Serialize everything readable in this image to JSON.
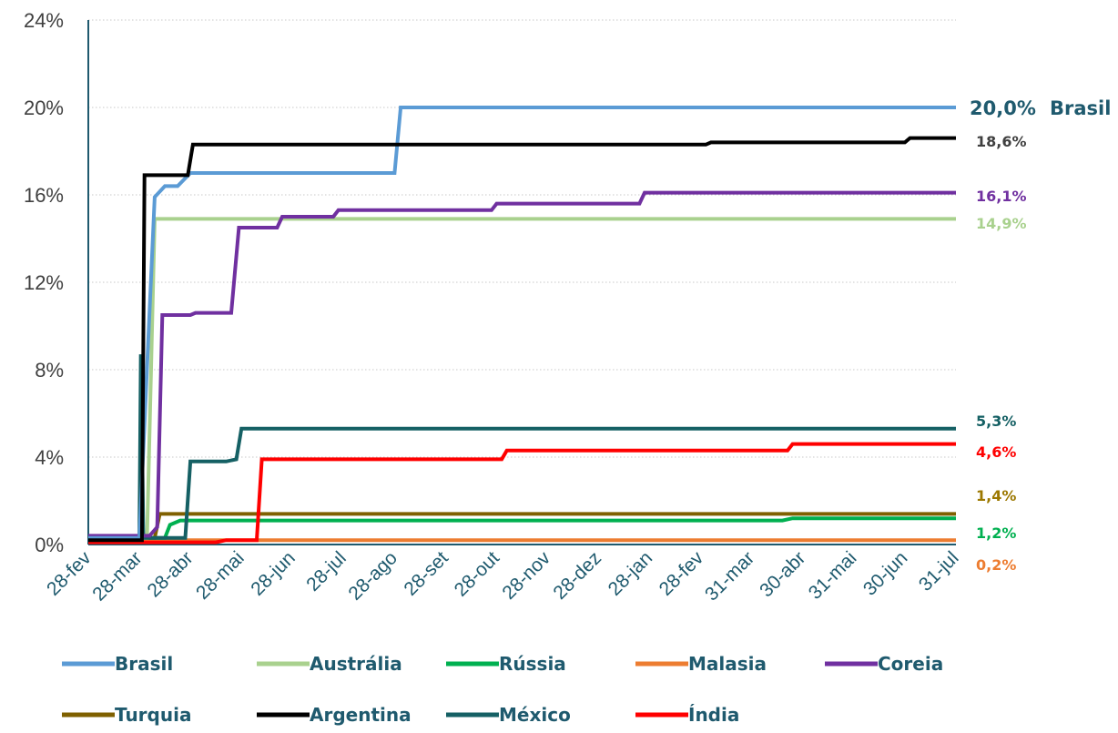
{
  "chart_data": {
    "type": "line",
    "title": "",
    "xlabel": "",
    "ylabel": "",
    "ylim": [
      0,
      24
    ],
    "yticks": [
      "0%",
      "4%",
      "8%",
      "12%",
      "16%",
      "20%",
      "24%"
    ],
    "xticks": [
      "28-fev",
      "28-mar",
      "28-abr",
      "28-mai",
      "28-jun",
      "28-jul",
      "28-ago",
      "28-set",
      "28-out",
      "28-nov",
      "28-dez",
      "28-jan",
      "28-fev",
      "31-mar",
      "30-abr",
      "31-mai",
      "30-jun",
      "31-jul"
    ],
    "grid": true,
    "legend": "bottom",
    "series": [
      {
        "name": "Brasil",
        "color": "#5b9bd5",
        "end_label": "20,0%",
        "steps": [
          [
            0,
            0.3
          ],
          [
            1,
            0.3
          ],
          [
            1.3,
            15.9
          ],
          [
            1.5,
            16.4
          ],
          [
            1.75,
            16.4
          ],
          [
            2.0,
            17.0
          ],
          [
            6.0,
            17.0
          ],
          [
            6.12,
            20.0
          ],
          [
            17,
            20.0
          ]
        ]
      },
      {
        "name": "Austrália",
        "color": "#a9d18e",
        "end_label": "14,9%",
        "steps": [
          [
            0,
            0.3
          ],
          [
            1.15,
            0.3
          ],
          [
            1.3,
            14.9
          ],
          [
            17,
            14.9
          ]
        ]
      },
      {
        "name": "Rússia",
        "color": "#00b050",
        "end_label": "1,2%",
        "steps": [
          [
            0,
            0.3
          ],
          [
            1.5,
            0.3
          ],
          [
            1.6,
            0.9
          ],
          [
            1.8,
            1.1
          ],
          [
            13.6,
            1.1
          ],
          [
            13.8,
            1.2
          ],
          [
            17,
            1.2
          ]
        ]
      },
      {
        "name": "Malasia",
        "color": "#ed7d31",
        "end_label": "0,2%",
        "steps": [
          [
            0,
            0.2
          ],
          [
            17,
            0.2
          ]
        ]
      },
      {
        "name": "Coreia",
        "color": "#7030a0",
        "end_label": "16,1%",
        "steps": [
          [
            0,
            0.4
          ],
          [
            1.2,
            0.4
          ],
          [
            1.35,
            0.8
          ],
          [
            1.45,
            10.5
          ],
          [
            2.0,
            10.5
          ],
          [
            2.1,
            10.6
          ],
          [
            2.8,
            10.6
          ],
          [
            2.95,
            14.5
          ],
          [
            3.7,
            14.5
          ],
          [
            3.8,
            15.0
          ],
          [
            4.8,
            15.0
          ],
          [
            4.9,
            15.3
          ],
          [
            7.9,
            15.3
          ],
          [
            8.0,
            15.6
          ],
          [
            10.8,
            15.6
          ],
          [
            10.9,
            16.1
          ],
          [
            17,
            16.1
          ]
        ]
      },
      {
        "name": "Turquia",
        "color": "#7f6000",
        "end_label": "1,4%",
        "steps": [
          [
            0,
            0.3
          ],
          [
            1.3,
            0.3
          ],
          [
            1.4,
            1.4
          ],
          [
            17,
            1.4
          ]
        ]
      },
      {
        "name": "Argentina",
        "color": "#000000",
        "end_label": "18,6%",
        "steps": [
          [
            0,
            0.2
          ],
          [
            1.05,
            0.2
          ],
          [
            1.1,
            16.9
          ],
          [
            1.95,
            16.9
          ],
          [
            2.05,
            18.3
          ],
          [
            12.1,
            18.3
          ],
          [
            12.2,
            18.4
          ],
          [
            16.0,
            18.4
          ],
          [
            16.1,
            18.6
          ],
          [
            17,
            18.6
          ]
        ]
      },
      {
        "name": "México",
        "color": "#156064",
        "end_label": "5,3%",
        "steps": [
          [
            0,
            0.3
          ],
          [
            1.0,
            0.3
          ],
          [
            1.03,
            8.7
          ],
          [
            1.08,
            0.3
          ],
          [
            1.9,
            0.3
          ],
          [
            2.0,
            3.8
          ],
          [
            2.7,
            3.8
          ],
          [
            2.9,
            3.9
          ],
          [
            3.0,
            5.3
          ],
          [
            17,
            5.3
          ]
        ]
      },
      {
        "name": "Índia",
        "color": "#ff0000",
        "end_label": "4,6%",
        "steps": [
          [
            0,
            0.1
          ],
          [
            2.5,
            0.1
          ],
          [
            2.7,
            0.2
          ],
          [
            3.3,
            0.2
          ],
          [
            3.4,
            3.9
          ],
          [
            8.1,
            3.9
          ],
          [
            8.2,
            4.3
          ],
          [
            13.7,
            4.3
          ],
          [
            13.8,
            4.6
          ],
          [
            17,
            4.6
          ]
        ]
      }
    ]
  },
  "highlight": {
    "value": "20,0%",
    "name": "Brasil",
    "color": "#1f5a6e"
  },
  "label_colors": {
    "Brasil": "#1f5a6e",
    "Austrália": "#a9d18e",
    "Rússia": "#00b050",
    "Malasia": "#ed7d31",
    "Coreia": "#7030a0",
    "Turquia": "#9c7800",
    "Argentina": "#404040",
    "México": "#156064",
    "Índia": "#ff0000"
  }
}
